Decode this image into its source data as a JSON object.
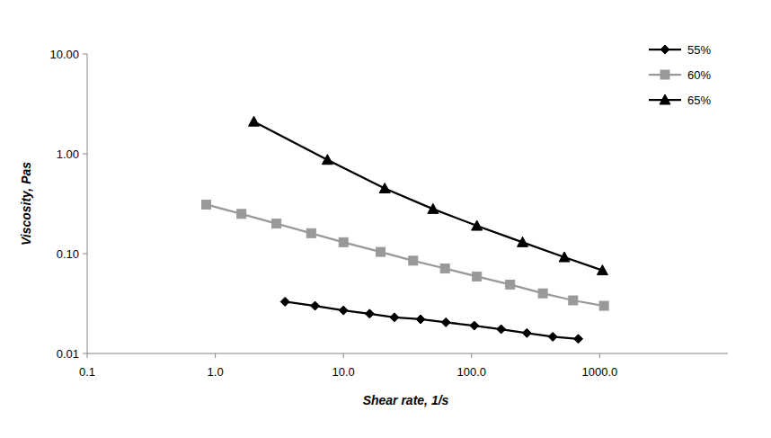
{
  "chart_data": {
    "type": "line",
    "x_label": "Shear rate, 1/s",
    "y_label": "Viscosity, Pas",
    "log": true,
    "grid": false,
    "legend": "top-right",
    "xlim": [
      0.1,
      10000
    ],
    "xticks": [
      0.1,
      {
        "value": 1,
        "label": "1.0"
      },
      {
        "value": 10,
        "label": "10.0"
      },
      {
        "value": 100,
        "label": "100.0"
      },
      {
        "value": 1000,
        "label": "1000.0"
      }
    ],
    "ylim": [
      0.01,
      10
    ],
    "yticks": [
      0.01,
      {
        "value": 0.1,
        "label": "0.10"
      },
      {
        "value": 1,
        "label": "1.00"
      },
      {
        "value": 10,
        "label": "10.00"
      }
    ],
    "series": [
      {
        "name": "55%",
        "color": "#000000",
        "marker": "diamond",
        "line_style": "solid",
        "x": [
          3.5,
          6,
          10,
          16,
          25,
          40,
          63,
          105,
          170,
          270,
          430,
          680
        ],
        "values": [
          0.033,
          0.03,
          0.027,
          0.025,
          0.023,
          0.022,
          0.0205,
          0.019,
          0.0175,
          0.016,
          0.0147,
          0.014
        ]
      },
      {
        "name": "60%",
        "color": "#999999",
        "marker": "square",
        "line_style": "solid",
        "x": [
          0.85,
          1.6,
          3.0,
          5.6,
          10,
          19.5,
          35,
          62,
          110,
          200,
          360,
          620,
          1080
        ],
        "values": [
          0.31,
          0.25,
          0.2,
          0.16,
          0.13,
          0.104,
          0.085,
          0.071,
          0.059,
          0.049,
          0.04,
          0.034,
          0.03
        ]
      },
      {
        "name": "65%",
        "color": "#000000",
        "marker": "triangle",
        "line_style": "solid",
        "x": [
          2,
          7.5,
          21,
          50,
          110,
          250,
          530,
          1050
        ],
        "values": [
          2.1,
          0.87,
          0.45,
          0.28,
          0.19,
          0.13,
          0.092,
          0.068
        ]
      }
    ]
  }
}
